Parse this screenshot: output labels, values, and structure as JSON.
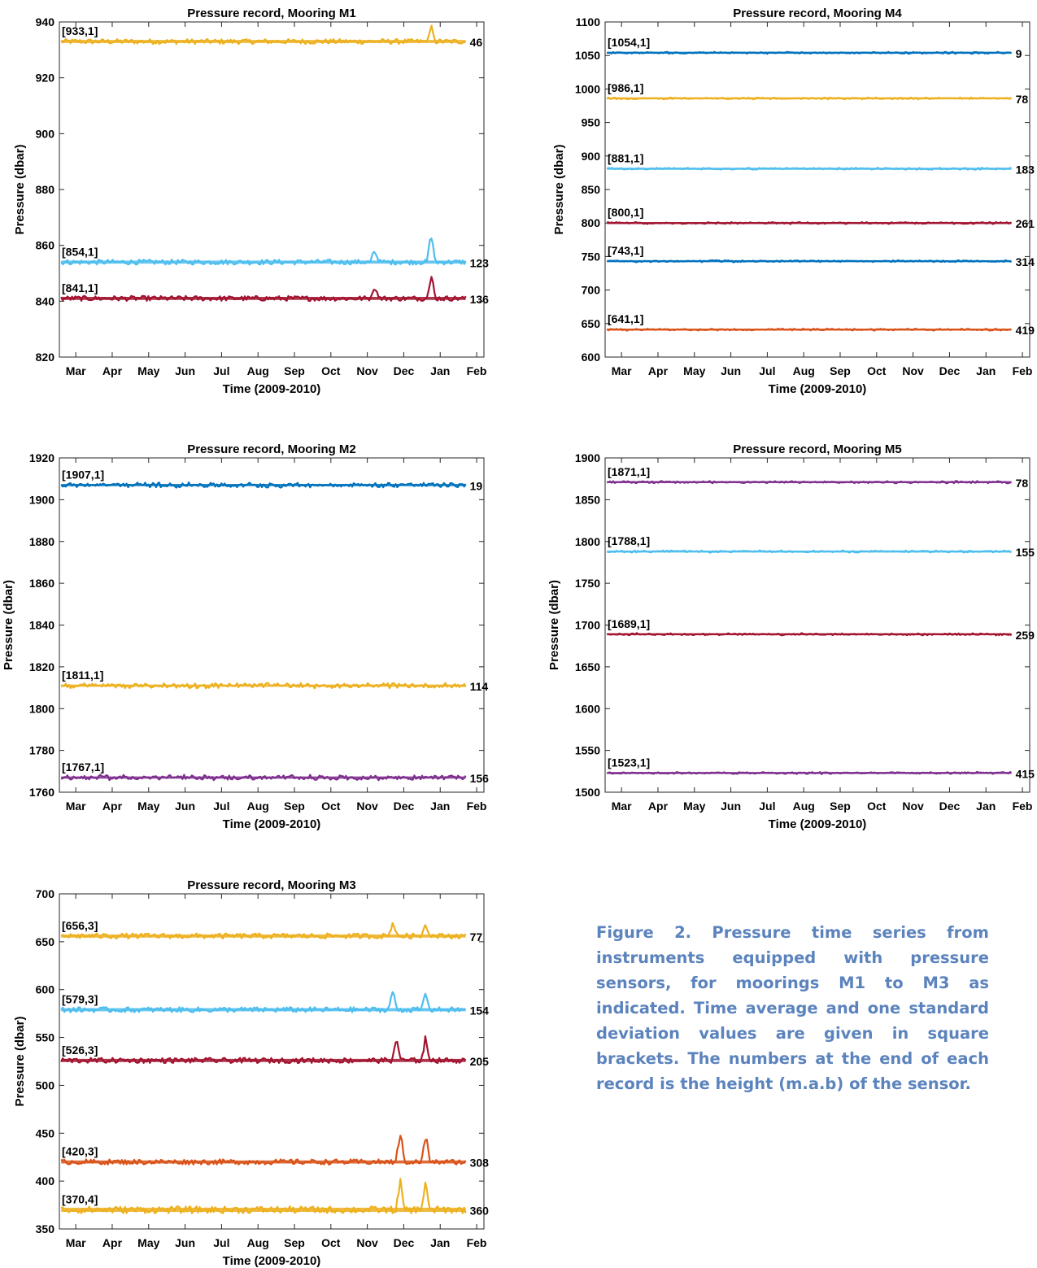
{
  "caption": "Figure 2. Pressure time series from instruments equipped with pressure sensors, for moorings M1 to M3 as indicated. Time average and one standard deviation values are given in square brackets. The numbers at the end of each record is the height (m.a.b) of the sensor.",
  "colors": {
    "blue": "#0072bd",
    "orange": "#d95319",
    "yellow": "#edb120",
    "purple": "#7e2f8e",
    "light_blue": "#4dbeee",
    "red": "#a2142f"
  },
  "chart_data": [
    {
      "type": "line",
      "title": "Pressure record, Mooring M1",
      "xlabel": "Time (2009-2010)",
      "ylabel": "Pressure (dbar)",
      "ylim": [
        820,
        940
      ],
      "yticks": [
        "820",
        "840",
        "860",
        "880",
        "900",
        "920",
        "940"
      ],
      "xticks": [
        "Mar",
        "Apr",
        "May",
        "Jun",
        "Jul",
        "Aug",
        "Sep",
        "Oct",
        "Nov",
        "Dec",
        "Jan",
        "Feb"
      ],
      "series": [
        {
          "label": "[933,1]",
          "height": "46",
          "mean": 933,
          "std": 1,
          "color": "#edb120",
          "spikes": [
            [
              11.75,
              940
            ]
          ]
        },
        {
          "label": "[854,1]",
          "height": "123",
          "mean": 854,
          "std": 1,
          "color": "#4dbeee",
          "spikes": [
            [
              11.75,
              866
            ],
            [
              10.2,
              860
            ]
          ]
        },
        {
          "label": "[841,1]",
          "height": "136",
          "mean": 841,
          "std": 1,
          "color": "#a2142f",
          "spikes": [
            [
              11.75,
              852
            ],
            [
              10.2,
              847
            ]
          ]
        }
      ]
    },
    {
      "type": "line",
      "title": "Pressure record, Mooring M4",
      "xlabel": "Time (2009-2010)",
      "ylabel": "Pressure (dbar)",
      "ylim": [
        600,
        1100
      ],
      "yticks": [
        "600",
        "650",
        "700",
        "750",
        "800",
        "850",
        "900",
        "950",
        "1000",
        "1050",
        "1100"
      ],
      "xticks": [
        "Mar",
        "Apr",
        "May",
        "Jun",
        "Jul",
        "Aug",
        "Sep",
        "Oct",
        "Nov",
        "Dec",
        "Jan",
        "Feb"
      ],
      "series": [
        {
          "label": "[1054,1]",
          "height": "9",
          "mean": 1054,
          "std": 1,
          "color": "#0072bd"
        },
        {
          "label": "[986,1]",
          "height": "78",
          "mean": 986,
          "std": 1,
          "color": "#edb120"
        },
        {
          "label": "[881,1]",
          "height": "183",
          "mean": 881,
          "std": 1,
          "color": "#4dbeee"
        },
        {
          "label": "[800,1]",
          "height": "261",
          "mean": 800,
          "std": 1,
          "color": "#a2142f"
        },
        {
          "label": "[743,1]",
          "height": "314",
          "mean": 743,
          "std": 1,
          "color": "#0072bd"
        },
        {
          "label": "[641,1]",
          "height": "419",
          "mean": 641,
          "std": 1,
          "color": "#d95319"
        }
      ]
    },
    {
      "type": "line",
      "title": "Pressure record, Mooring M2",
      "xlabel": "Time (2009-2010)",
      "ylabel": "Pressure (dbar)",
      "ylim": [
        1760,
        1920
      ],
      "yticks": [
        "1760",
        "1780",
        "1800",
        "1820",
        "1840",
        "1860",
        "1880",
        "1900",
        "1920"
      ],
      "xticks": [
        "Mar",
        "Apr",
        "May",
        "Jun",
        "Jul",
        "Aug",
        "Sep",
        "Oct",
        "Nov",
        "Dec",
        "Jan",
        "Feb"
      ],
      "series": [
        {
          "label": "[1907,1]",
          "height": "19",
          "mean": 1907,
          "std": 1,
          "color": "#0072bd"
        },
        {
          "label": "[1811,1]",
          "height": "114",
          "mean": 1811,
          "std": 1,
          "color": "#edb120"
        },
        {
          "label": "[1767,1]",
          "height": "156",
          "mean": 1767,
          "std": 1,
          "color": "#7e2f8e"
        }
      ]
    },
    {
      "type": "line",
      "title": "Pressure record, Mooring M5",
      "xlabel": "Time (2009-2010)",
      "ylabel": "Pressure (dbar)",
      "ylim": [
        1500,
        1900
      ],
      "yticks": [
        "1500",
        "1550",
        "1600",
        "1650",
        "1700",
        "1750",
        "1800",
        "1850",
        "1900"
      ],
      "xticks": [
        "Mar",
        "Apr",
        "May",
        "Jun",
        "Jul",
        "Aug",
        "Sep",
        "Oct",
        "Nov",
        "Dec",
        "Jan",
        "Feb"
      ],
      "series": [
        {
          "label": "[1871,1]",
          "height": "78",
          "mean": 1871,
          "std": 1,
          "color": "#7e2f8e"
        },
        {
          "label": "[1788,1]",
          "height": "155",
          "mean": 1788,
          "std": 1,
          "color": "#4dbeee"
        },
        {
          "label": "[1689,1]",
          "height": "259",
          "mean": 1689,
          "std": 1,
          "color": "#a2142f"
        },
        {
          "label": "[1523,1]",
          "height": "415",
          "mean": 1523,
          "std": 1,
          "color": "#7e2f8e"
        }
      ]
    },
    {
      "type": "line",
      "title": "Pressure record, Mooring M3",
      "xlabel": "Time (2009-2010)",
      "ylabel": "Pressure (dbar)",
      "ylim": [
        350,
        700
      ],
      "yticks": [
        "350",
        "400",
        "450",
        "500",
        "550",
        "600",
        "650",
        "700"
      ],
      "xticks": [
        "Mar",
        "Apr",
        "May",
        "Jun",
        "Jul",
        "Aug",
        "Sep",
        "Oct",
        "Nov",
        "Dec",
        "Jan",
        "Feb"
      ],
      "series": [
        {
          "label": "[656,3]",
          "height": "77",
          "mean": 656,
          "std": 3,
          "color": "#edb120",
          "spikes": [
            [
              10.7,
              673
            ],
            [
              11.6,
              671
            ]
          ]
        },
        {
          "label": "[579,3]",
          "height": "154",
          "mean": 579,
          "std": 3,
          "color": "#4dbeee",
          "spikes": [
            [
              10.7,
              607
            ],
            [
              11.6,
              604
            ]
          ]
        },
        {
          "label": "[526,3]",
          "height": "205",
          "mean": 526,
          "std": 3,
          "color": "#a2142f",
          "spikes": [
            [
              10.8,
              556
            ],
            [
              11.6,
              554
            ]
          ]
        },
        {
          "label": "[420,3]",
          "height": "308",
          "mean": 420,
          "std": 3,
          "color": "#d95319",
          "spikes": [
            [
              10.9,
              459
            ],
            [
              11.6,
              454
            ]
          ]
        },
        {
          "label": "[370,4]",
          "height": "360",
          "mean": 370,
          "std": 4,
          "color": "#edb120",
          "spikes": [
            [
              10.9,
              410
            ],
            [
              11.6,
              405
            ]
          ]
        }
      ]
    }
  ]
}
